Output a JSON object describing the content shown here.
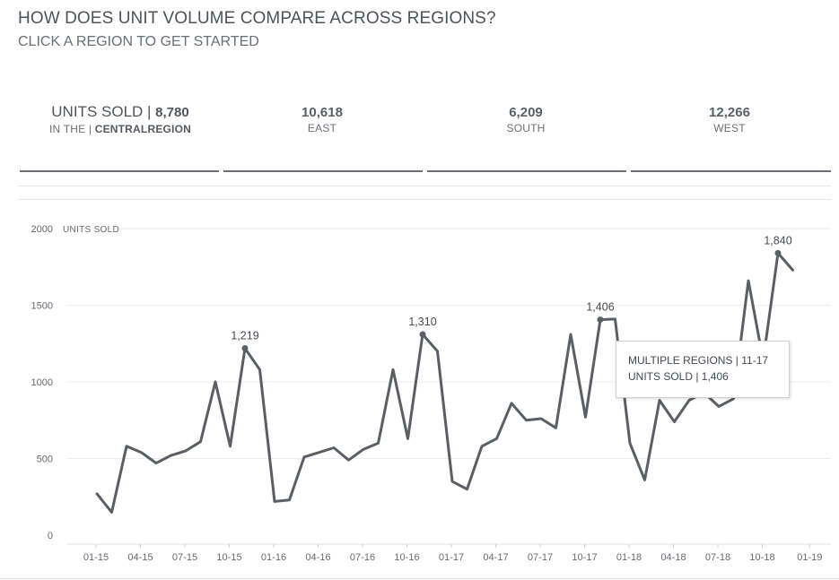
{
  "header": {
    "title": "HOW DOES UNIT VOLUME COMPARE ACROSS REGIONS?",
    "subtitle": "CLICK A REGION TO GET STARTED"
  },
  "kpis": {
    "central": {
      "label": "UNITS SOLD |",
      "value": "8,780",
      "prefix": "IN THE |",
      "region": "CENTRALREGION"
    },
    "east": {
      "value": "10,618",
      "region": "EAST"
    },
    "south": {
      "value": "6,209",
      "region": "SOUTH"
    },
    "west": {
      "value": "12,266",
      "region": "WEST"
    }
  },
  "tooltip": {
    "line1": "MULTIPLE REGIONS | 11-17",
    "line2": "UNITS SOLD | 1,406"
  },
  "colors": {
    "line": "#5b5e64",
    "grid": "#ececec",
    "text": "#666a70"
  },
  "chart_data": {
    "type": "line",
    "title": "",
    "ylabel": "UNITS SOLD",
    "xlabel": "",
    "ylim": [
      0,
      2000
    ],
    "yticks": [
      0,
      500,
      1000,
      1500,
      2000
    ],
    "xticks": [
      "01-15",
      "04-15",
      "07-15",
      "10-15",
      "01-16",
      "04-16",
      "07-16",
      "10-16",
      "01-17",
      "04-17",
      "07-17",
      "10-17",
      "01-18",
      "04-18",
      "07-18",
      "10-18",
      "01-19"
    ],
    "x": [
      "01-15",
      "02-15",
      "03-15",
      "04-15",
      "05-15",
      "06-15",
      "07-15",
      "08-15",
      "09-15",
      "10-15",
      "11-15",
      "12-15",
      "01-16",
      "02-16",
      "03-16",
      "04-16",
      "05-16",
      "06-16",
      "07-16",
      "08-16",
      "09-16",
      "10-16",
      "11-16",
      "12-16",
      "01-17",
      "02-17",
      "03-17",
      "04-17",
      "05-17",
      "06-17",
      "07-17",
      "08-17",
      "09-17",
      "10-17",
      "11-17",
      "12-17",
      "01-18",
      "02-18",
      "03-18",
      "04-18",
      "05-18",
      "06-18",
      "07-18",
      "08-18",
      "09-18",
      "10-18",
      "11-18",
      "12-18"
    ],
    "values": [
      270,
      150,
      580,
      540,
      470,
      520,
      550,
      610,
      1000,
      580,
      1219,
      1080,
      220,
      230,
      510,
      540,
      570,
      490,
      560,
      600,
      1080,
      630,
      1310,
      1200,
      350,
      300,
      580,
      630,
      860,
      750,
      760,
      700,
      1310,
      770,
      1406,
      1410,
      600,
      360,
      880,
      740,
      880,
      930,
      840,
      890,
      1660,
      1140,
      1840,
      1730
    ],
    "annotations": [
      {
        "x": "11-15",
        "label": "1,219"
      },
      {
        "x": "11-16",
        "label": "1,310"
      },
      {
        "x": "11-17",
        "label": "1,406"
      },
      {
        "x": "11-18",
        "label": "1,840"
      }
    ]
  }
}
